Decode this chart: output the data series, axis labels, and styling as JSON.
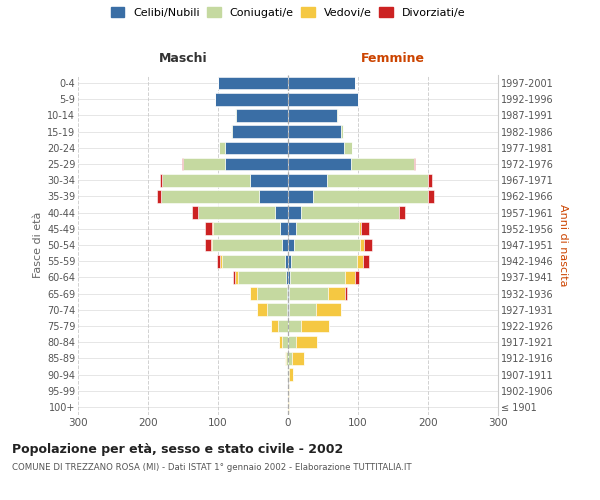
{
  "age_groups": [
    "100+",
    "95-99",
    "90-94",
    "85-89",
    "80-84",
    "75-79",
    "70-74",
    "65-69",
    "60-64",
    "55-59",
    "50-54",
    "45-49",
    "40-44",
    "35-39",
    "30-34",
    "25-29",
    "20-24",
    "15-19",
    "10-14",
    "5-9",
    "0-4"
  ],
  "birth_years": [
    "≤ 1901",
    "1902-1906",
    "1907-1911",
    "1912-1916",
    "1917-1921",
    "1922-1926",
    "1927-1931",
    "1932-1936",
    "1937-1941",
    "1942-1946",
    "1947-1951",
    "1952-1956",
    "1957-1961",
    "1962-1966",
    "1967-1971",
    "1972-1976",
    "1977-1981",
    "1982-1986",
    "1987-1991",
    "1992-1996",
    "1997-2001"
  ],
  "male_celibi": [
    0,
    0,
    0,
    0,
    0,
    0,
    2,
    2,
    3,
    4,
    8,
    12,
    18,
    42,
    55,
    90,
    90,
    80,
    75,
    105,
    100
  ],
  "male_coniugati": [
    0,
    0,
    1,
    3,
    8,
    14,
    28,
    42,
    68,
    90,
    100,
    95,
    110,
    140,
    125,
    60,
    8,
    2,
    1,
    0,
    0
  ],
  "male_vedovi": [
    0,
    0,
    0,
    2,
    5,
    10,
    15,
    10,
    5,
    3,
    2,
    1,
    1,
    0,
    0,
    0,
    0,
    0,
    0,
    0,
    0
  ],
  "male_divorziati": [
    0,
    0,
    0,
    0,
    0,
    0,
    0,
    1,
    2,
    5,
    8,
    10,
    8,
    5,
    3,
    1,
    0,
    0,
    0,
    0,
    0
  ],
  "female_celibi": [
    0,
    0,
    0,
    0,
    0,
    0,
    2,
    2,
    3,
    4,
    8,
    12,
    18,
    35,
    55,
    90,
    80,
    75,
    70,
    100,
    95
  ],
  "female_coniugati": [
    0,
    0,
    2,
    5,
    12,
    18,
    38,
    55,
    78,
    95,
    95,
    90,
    140,
    165,
    145,
    90,
    12,
    3,
    1,
    0,
    0
  ],
  "female_vedovi": [
    1,
    1,
    5,
    18,
    30,
    40,
    35,
    25,
    15,
    8,
    5,
    2,
    1,
    0,
    0,
    0,
    0,
    0,
    0,
    0,
    0
  ],
  "female_divorziati": [
    0,
    0,
    0,
    0,
    0,
    1,
    1,
    2,
    5,
    8,
    12,
    12,
    8,
    8,
    5,
    2,
    0,
    0,
    0,
    0,
    0
  ],
  "color_celibi": "#3a6ea5",
  "color_coniugati": "#c5d9a0",
  "color_vedovi": "#f5c842",
  "color_divorziati": "#cc2222",
  "title": "Popolazione per età, sesso e stato civile - 2002",
  "subtitle": "COMUNE DI TREZZANO ROSA (MI) - Dati ISTAT 1° gennaio 2002 - Elaborazione TUTTITALIA.IT",
  "xlabel_left": "Maschi",
  "xlabel_right": "Femmine",
  "ylabel_left": "Fasce di età",
  "ylabel_right": "Anni di nascita",
  "xlim": 300,
  "bg_color": "#ffffff",
  "grid_color": "#cccccc"
}
